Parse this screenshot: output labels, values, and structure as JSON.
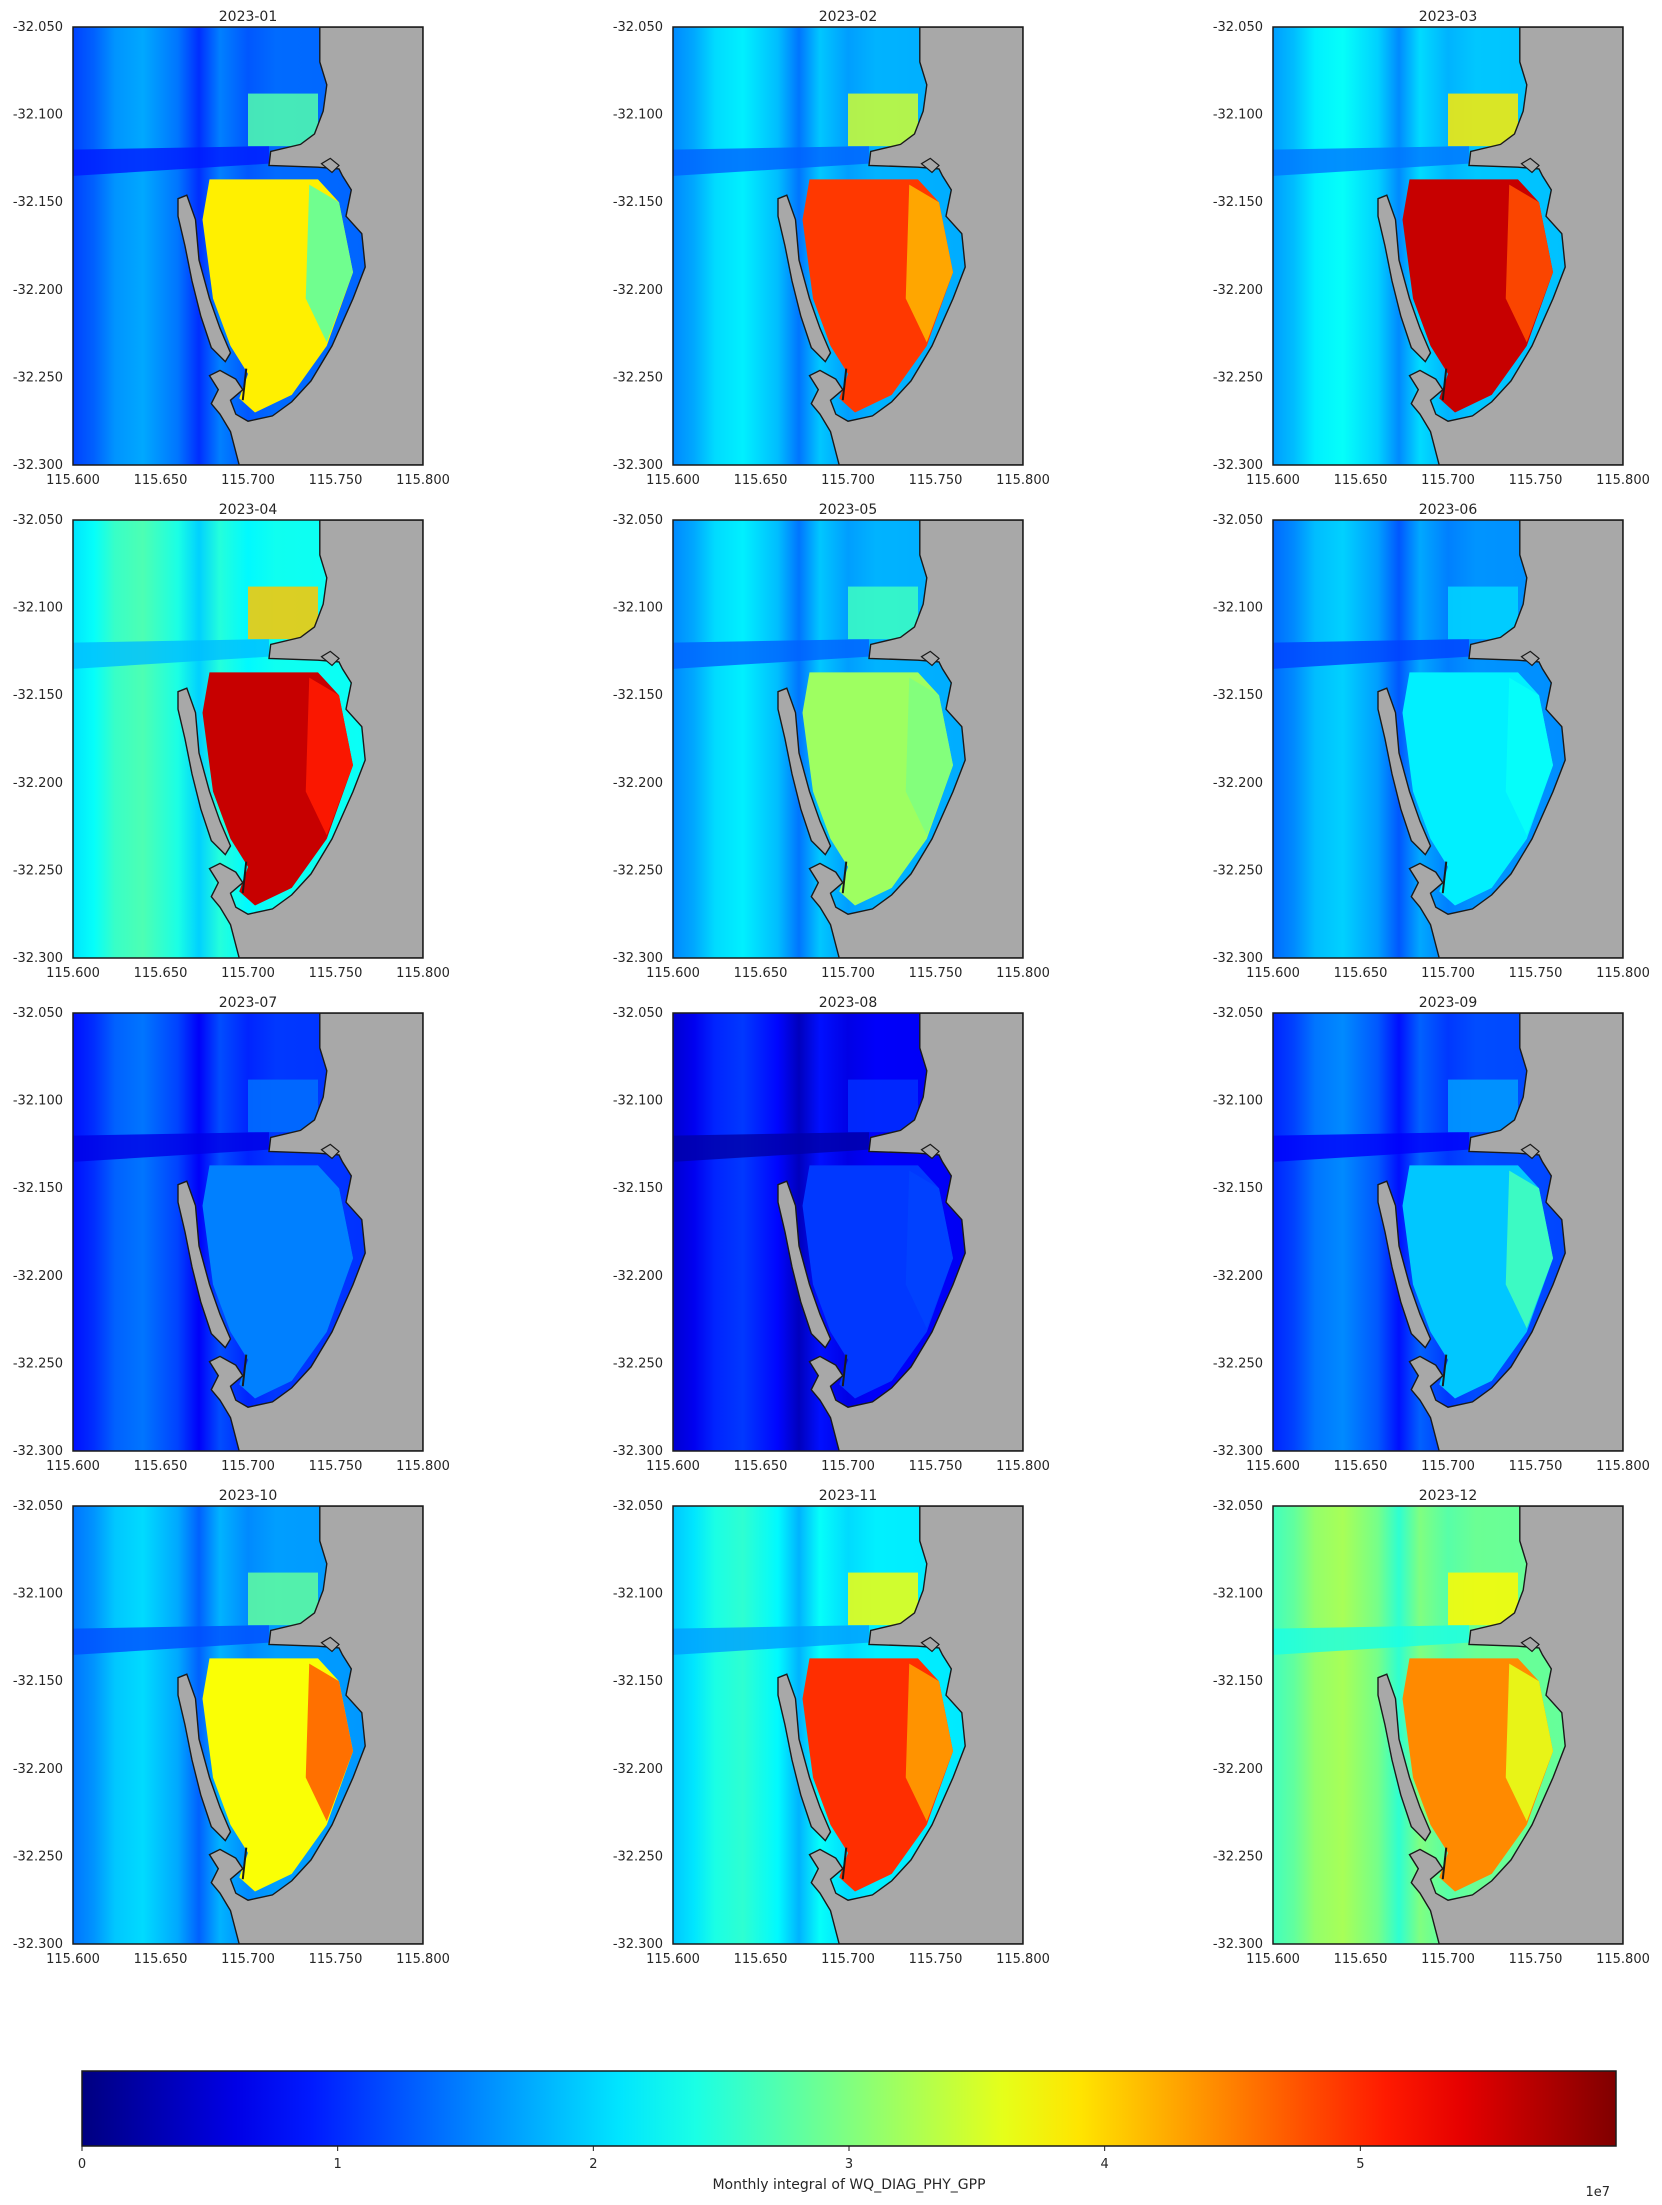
{
  "chart_data": {
    "type": "heatmap",
    "layout": "4 rows x 3 columns of map panels",
    "variable_label": "Monthly integral of WQ_DIAG_PHY_GPP",
    "colormap": "jet",
    "color_range": [
      0,
      60000000
    ],
    "colorbar": {
      "orientation": "horizontal",
      "placement": "bottom",
      "ticks": [
        "0",
        "1",
        "2",
        "3",
        "4",
        "5"
      ],
      "multiplier_label": "1e7"
    },
    "xlim": [
      115.6,
      115.8
    ],
    "ylim": [
      -32.3,
      -32.05
    ],
    "xticks": [
      "115.600",
      "115.650",
      "115.700",
      "115.750",
      "115.800"
    ],
    "yticks": [
      "-32.050",
      "-32.100",
      "-32.150",
      "-32.200",
      "-32.250",
      "-32.300"
    ],
    "land_color": "#a8a8a8",
    "panels": [
      {
        "title": "2023-01",
        "basin_level": 0.64,
        "shelf_level": 0.27,
        "east_level": 0.47
      },
      {
        "title": "2023-02",
        "basin_level": 0.82,
        "shelf_level": 0.34,
        "east_level": 0.7
      },
      {
        "title": "2023-03",
        "basin_level": 0.93,
        "shelf_level": 0.36,
        "east_level": 0.8
      },
      {
        "title": "2023-04",
        "basin_level": 0.93,
        "shelf_level": 0.43,
        "east_level": 0.85
      },
      {
        "title": "2023-05",
        "basin_level": 0.53,
        "shelf_level": 0.34,
        "east_level": 0.5
      },
      {
        "title": "2023-06",
        "basin_level": 0.36,
        "shelf_level": 0.31,
        "east_level": 0.38
      },
      {
        "title": "2023-07",
        "basin_level": 0.25,
        "shelf_level": 0.22,
        "east_level": 0.25
      },
      {
        "title": "2023-08",
        "basin_level": 0.18,
        "shelf_level": 0.16,
        "east_level": 0.19
      },
      {
        "title": "2023-09",
        "basin_level": 0.32,
        "shelf_level": 0.24,
        "east_level": 0.44
      },
      {
        "title": "2023-10",
        "basin_level": 0.62,
        "shelf_level": 0.32,
        "east_level": 0.78
      },
      {
        "title": "2023-11",
        "basin_level": 0.83,
        "shelf_level": 0.4,
        "east_level": 0.72
      },
      {
        "title": "2023-12",
        "basin_level": 0.74,
        "shelf_level": 0.52,
        "east_level": 0.6
      }
    ]
  }
}
